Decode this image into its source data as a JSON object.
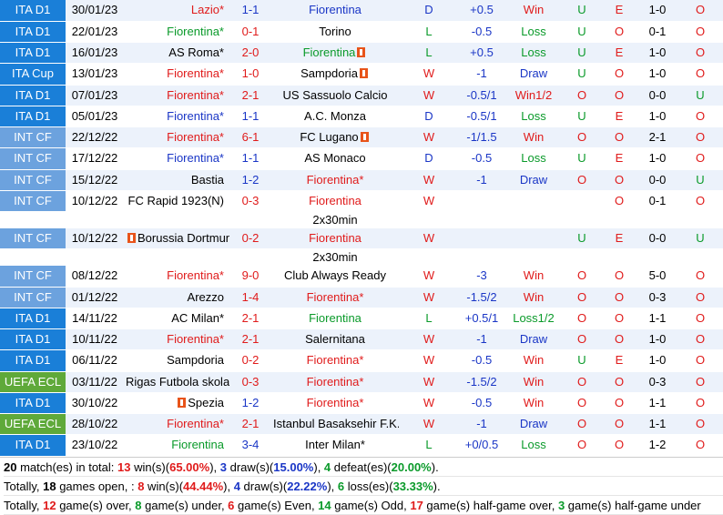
{
  "matches": [
    {
      "comp": "ITA D1",
      "comp_style": "ita",
      "date": "30/01/23",
      "home": "Lazio*",
      "home_style": "home",
      "score": "1-1",
      "score_style": "blue",
      "away": "Fiorentina",
      "away_style": "away",
      "r": "D",
      "hc": "+0.5",
      "hc_style": "blue",
      "res": "Win",
      "ou": "U",
      "ht_ou": "E",
      "ht": "1-0",
      "o2": "O",
      "o2_style": "O"
    },
    {
      "comp": "ITA D1",
      "comp_style": "ita",
      "date": "22/01/23",
      "home": "Fiorentina*",
      "home_style": "fio-green",
      "score": "0-1",
      "score_style": "red",
      "away": "Torino",
      "away_style": "neutral",
      "r": "L",
      "hc": "-0.5",
      "hc_style": "blue",
      "res": "Loss",
      "ou": "U",
      "ht_ou": "O",
      "ht": "0-1",
      "o2": "O",
      "o2_style": "O"
    },
    {
      "comp": "ITA D1",
      "comp_style": "ita",
      "date": "16/01/23",
      "home": "AS Roma*",
      "home_style": "neutral",
      "score": "2-0",
      "score_style": "red",
      "away": "Fiorentina",
      "away_style": "fio-green",
      "away_flag": true,
      "r": "L",
      "hc": "+0.5",
      "hc_style": "blue",
      "res": "Loss",
      "ou": "U",
      "ht_ou": "E",
      "ht": "1-0",
      "o2": "O",
      "o2_style": "O"
    },
    {
      "comp": "ITA Cup",
      "comp_style": "ita",
      "date": "13/01/23",
      "home": "Fiorentina*",
      "home_style": "home",
      "score": "1-0",
      "score_style": "red",
      "away": "Sampdoria",
      "away_style": "neutral",
      "away_flag": true,
      "r": "W",
      "hc": "-1",
      "hc_style": "blue",
      "res": "Draw",
      "ou": "U",
      "ht_ou": "O",
      "ht": "1-0",
      "o2": "O",
      "o2_style": "O"
    },
    {
      "comp": "ITA D1",
      "comp_style": "ita",
      "date": "07/01/23",
      "home": "Fiorentina*",
      "home_style": "home",
      "score": "2-1",
      "score_style": "red",
      "away": "US Sassuolo Calcio",
      "away_style": "neutral",
      "r": "W",
      "hc": "-0.5/1",
      "hc_style": "blue",
      "res": "Win1/2",
      "ou": "O",
      "ht_ou": "O",
      "ht": "0-0",
      "o2": "U",
      "o2_style": "U"
    },
    {
      "comp": "ITA D1",
      "comp_style": "ita",
      "date": "05/01/23",
      "home": "Fiorentina*",
      "home_style": "away",
      "score": "1-1",
      "score_style": "blue",
      "away": "A.C. Monza",
      "away_style": "neutral",
      "r": "D",
      "hc": "-0.5/1",
      "hc_style": "blue",
      "res": "Loss",
      "ou": "U",
      "ht_ou": "E",
      "ht": "1-0",
      "o2": "O",
      "o2_style": "O"
    },
    {
      "comp": "INT CF",
      "comp_style": "intcf",
      "date": "22/12/22",
      "home": "Fiorentina*",
      "home_style": "home",
      "score": "6-1",
      "score_style": "red",
      "away": "FC Lugano",
      "away_style": "neutral",
      "away_flag": true,
      "r": "W",
      "hc": "-1/1.5",
      "hc_style": "blue",
      "res": "Win",
      "ou": "O",
      "ht_ou": "O",
      "ht": "2-1",
      "o2": "O",
      "o2_style": "O"
    },
    {
      "comp": "INT CF",
      "comp_style": "intcf",
      "date": "17/12/22",
      "home": "Fiorentina*",
      "home_style": "away",
      "score": "1-1",
      "score_style": "blue",
      "away": "AS Monaco",
      "away_style": "neutral",
      "r": "D",
      "hc": "-0.5",
      "hc_style": "blue",
      "res": "Loss",
      "ou": "U",
      "ht_ou": "E",
      "ht": "1-0",
      "o2": "O",
      "o2_style": "O"
    },
    {
      "comp": "INT CF",
      "comp_style": "intcf",
      "date": "15/12/22",
      "home": "Bastia",
      "home_style": "neutral",
      "score": "1-2",
      "score_style": "blue",
      "away": "Fiorentina*",
      "away_style": "home",
      "r": "W",
      "hc": "-1",
      "hc_style": "blue",
      "res": "Draw",
      "ou": "O",
      "ht_ou": "O",
      "ht": "0-0",
      "o2": "U",
      "o2_style": "U"
    },
    {
      "comp": "INT CF",
      "comp_style": "intcf",
      "date": "10/12/22",
      "home": "FC Rapid 1923(N)",
      "home_style": "neutral",
      "score": "0-3",
      "score_style": "red",
      "away": "Fiorentina",
      "away_style": "home",
      "r": "W",
      "hc": "",
      "hc_style": "blue",
      "res": "",
      "ou": "",
      "ht_ou": "O",
      "ht": "0-1",
      "o2": "O",
      "o2_style": "O",
      "note": "2x30min"
    },
    {
      "comp": "INT CF",
      "comp_style": "intcf",
      "date": "10/12/22",
      "home": "Borussia Dortmund(N)",
      "home_style": "neutral",
      "home_flag": true,
      "score": "0-2",
      "score_style": "red",
      "away": "Fiorentina",
      "away_style": "home",
      "r": "W",
      "hc": "",
      "hc_style": "blue",
      "res": "",
      "ou": "U",
      "ht_ou": "E",
      "ht": "0-0",
      "o2": "U",
      "o2_style": "U",
      "note": "2x30min"
    },
    {
      "comp": "INT CF",
      "comp_style": "intcf",
      "date": "08/12/22",
      "home": "Fiorentina*",
      "home_style": "home",
      "score": "9-0",
      "score_style": "red",
      "away": "Club Always Ready",
      "away_style": "neutral",
      "r": "W",
      "hc": "-3",
      "hc_style": "blue",
      "res": "Win",
      "ou": "O",
      "ht_ou": "O",
      "ht": "5-0",
      "o2": "O",
      "o2_style": "O"
    },
    {
      "comp": "INT CF",
      "comp_style": "intcf",
      "date": "01/12/22",
      "home": "Arezzo",
      "home_style": "neutral",
      "score": "1-4",
      "score_style": "red",
      "away": "Fiorentina*",
      "away_style": "home",
      "r": "W",
      "hc": "-1.5/2",
      "hc_style": "blue",
      "res": "Win",
      "ou": "O",
      "ht_ou": "O",
      "ht": "0-3",
      "o2": "O",
      "o2_style": "O"
    },
    {
      "comp": "ITA D1",
      "comp_style": "ita",
      "date": "14/11/22",
      "home": "AC Milan*",
      "home_style": "neutral",
      "score": "2-1",
      "score_style": "red",
      "away": "Fiorentina",
      "away_style": "fio-green",
      "r": "L",
      "hc": "+0.5/1",
      "hc_style": "blue",
      "res": "Loss1/2",
      "ou": "O",
      "ht_ou": "O",
      "ht": "1-1",
      "o2": "O",
      "o2_style": "O"
    },
    {
      "comp": "ITA D1",
      "comp_style": "ita",
      "date": "10/11/22",
      "home": "Fiorentina*",
      "home_style": "home",
      "score": "2-1",
      "score_style": "red",
      "away": "Salernitana",
      "away_style": "neutral",
      "r": "W",
      "hc": "-1",
      "hc_style": "blue",
      "res": "Draw",
      "ou": "O",
      "ht_ou": "O",
      "ht": "1-0",
      "o2": "O",
      "o2_style": "O"
    },
    {
      "comp": "ITA D1",
      "comp_style": "ita",
      "date": "06/11/22",
      "home": "Sampdoria",
      "home_style": "neutral",
      "score": "0-2",
      "score_style": "red",
      "away": "Fiorentina*",
      "away_style": "home",
      "r": "W",
      "hc": "-0.5",
      "hc_style": "blue",
      "res": "Win",
      "ou": "U",
      "ht_ou": "E",
      "ht": "1-0",
      "o2": "O",
      "o2_style": "O"
    },
    {
      "comp": "UEFA ECL",
      "comp_style": "uefa",
      "date": "03/11/22",
      "home": "Rigas Futbola skola",
      "home_style": "neutral",
      "score": "0-3",
      "score_style": "red",
      "away": "Fiorentina*",
      "away_style": "home",
      "r": "W",
      "hc": "-1.5/2",
      "hc_style": "blue",
      "res": "Win",
      "ou": "O",
      "ht_ou": "O",
      "ht": "0-3",
      "o2": "O",
      "o2_style": "O"
    },
    {
      "comp": "ITA D1",
      "comp_style": "ita",
      "date": "30/10/22",
      "home": "Spezia",
      "home_style": "neutral",
      "home_flag": true,
      "score": "1-2",
      "score_style": "blue",
      "away": "Fiorentina*",
      "away_style": "home",
      "r": "W",
      "hc": "-0.5",
      "hc_style": "blue",
      "res": "Win",
      "ou": "O",
      "ht_ou": "O",
      "ht": "1-1",
      "o2": "O",
      "o2_style": "O"
    },
    {
      "comp": "UEFA ECL",
      "comp_style": "uefa",
      "date": "28/10/22",
      "home": "Fiorentina*",
      "home_style": "home",
      "score": "2-1",
      "score_style": "red",
      "away": "Istanbul Basaksehir F.K.",
      "away_style": "neutral",
      "r": "W",
      "hc": "-1",
      "hc_style": "blue",
      "res": "Draw",
      "ou": "O",
      "ht_ou": "O",
      "ht": "1-1",
      "o2": "O",
      "o2_style": "O"
    },
    {
      "comp": "ITA D1",
      "comp_style": "ita",
      "date": "23/10/22",
      "home": "Fiorentina",
      "home_style": "fio-green",
      "score": "3-4",
      "score_style": "blue",
      "away": "Inter Milan*",
      "away_style": "neutral",
      "r": "L",
      "hc": "+0/0.5",
      "hc_style": "blue",
      "res": "Loss",
      "ou": "O",
      "ht_ou": "O",
      "ht": "1-2",
      "o2": "O",
      "o2_style": "O"
    }
  ],
  "summary": {
    "line1": {
      "count": "20",
      "a": " match(es) in total: ",
      "wins": "13",
      "b": " win(s)(",
      "win_pct": "65.00%",
      "c": "), ",
      "draws": "3",
      "d": " draw(s)(",
      "draw_pct": "15.00%",
      "e": "), ",
      "defeats": "4",
      "f": " defeat(es)(",
      "def_pct": "20.00%",
      "g": ")."
    },
    "line2": {
      "a": "Totally, ",
      "open": "18",
      "b": " games open, : ",
      "wins": "8",
      "c": " win(s)(",
      "win_pct": "44.44%",
      "d": "), ",
      "draws": "4",
      "e": " draw(s)(",
      "draw_pct": "22.22%",
      "f": "), ",
      "loss": "6",
      "g": " loss(es)(",
      "loss_pct": "33.33%",
      "h": ")."
    },
    "line3": {
      "a": "Totally, ",
      "over": "12",
      "b": " game(s) over, ",
      "under": "8",
      "c": " game(s) under, ",
      "even": "6",
      "d": " game(s) Even, ",
      "odd": "14",
      "e": " game(s) Odd, ",
      "hg_over": "17",
      "f": " game(s) half-game over, ",
      "hg_under": "3",
      "g": " game(s) half-game under"
    }
  }
}
